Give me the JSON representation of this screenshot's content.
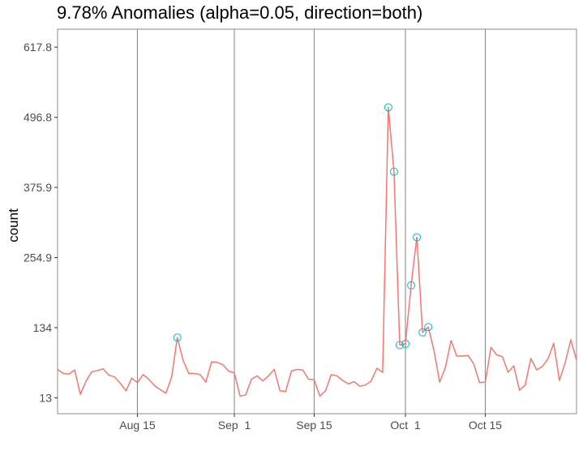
{
  "chart_data": {
    "type": "line",
    "title": "9.78% Anomalies (alpha=0.05, direction=both)",
    "xlabel": "",
    "ylabel": "count",
    "grid": "vertical major gridlines only",
    "legend": "none",
    "y_ticks": [
      "13",
      "134",
      "254.9",
      "375.9",
      "496.8",
      "617.8"
    ],
    "ylim": [
      -14.4,
      648.8
    ],
    "x_ticks": [
      {
        "label": "Aug 15",
        "day": 14
      },
      {
        "label": "Sep  1",
        "day": 31
      },
      {
        "label": "Sep 15",
        "day": 45
      },
      {
        "label": "Oct  1",
        "day": 61
      },
      {
        "label": "Oct 15",
        "day": 75
      }
    ],
    "x_range_days": [
      0,
      91
    ],
    "x_origin_date": "2017-08-01",
    "colors": {
      "line": "#F8766D",
      "anomaly": "#00BFC4",
      "grid": "#8c8c8c",
      "panel_border": "#8c8c8c"
    },
    "series": [
      {
        "name": "count",
        "x": [
          0,
          1,
          2,
          3,
          4,
          5,
          6,
          7,
          8,
          9,
          10,
          11,
          12,
          13,
          14,
          15,
          16,
          17,
          18,
          19,
          20,
          21,
          22,
          23,
          24,
          25,
          26,
          27,
          28,
          29,
          30,
          31,
          32,
          33,
          34,
          35,
          36,
          37,
          38,
          39,
          40,
          41,
          42,
          43,
          44,
          45,
          46,
          47,
          48,
          49,
          50,
          51,
          52,
          53,
          54,
          55,
          56,
          57,
          58,
          59,
          60,
          61,
          62,
          63,
          64,
          65,
          66,
          67,
          68,
          69,
          70,
          71,
          72,
          73,
          74,
          75,
          76,
          77,
          78,
          79,
          80,
          81,
          82,
          83,
          84,
          85,
          86,
          87,
          88,
          89,
          90,
          91
        ],
        "values": [
          62,
          55,
          54,
          61,
          19,
          42,
          58,
          60,
          63,
          52,
          49,
          38,
          25,
          47,
          39,
          53,
          45,
          34,
          27,
          21,
          49,
          117,
          78,
          55,
          55,
          53,
          40,
          75,
          74,
          70,
          59,
          56,
          16,
          18,
          45,
          51,
          42,
          51,
          62,
          25,
          24,
          59,
          62,
          61,
          45,
          44,
          16,
          25,
          53,
          51,
          43,
          37,
          41,
          33,
          35,
          42,
          64,
          57,
          514,
          403,
          104,
          106,
          207,
          290,
          126,
          135,
          95,
          40,
          65,
          112,
          85,
          85,
          86,
          71,
          39,
          40,
          100,
          87,
          84,
          57,
          68,
          26,
          35,
          81,
          61,
          67,
          80,
          107,
          43,
          73,
          113,
          78
        ]
      }
    ],
    "anomalies": {
      "x": [
        21,
        58,
        59,
        60,
        61,
        62,
        63,
        64,
        65
      ],
      "values": [
        117,
        514,
        403,
        104,
        106,
        207,
        290,
        126,
        135
      ]
    }
  }
}
